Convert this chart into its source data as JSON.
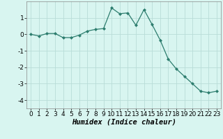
{
  "x": [
    0,
    1,
    2,
    3,
    4,
    5,
    6,
    7,
    8,
    9,
    10,
    11,
    12,
    13,
    14,
    15,
    16,
    17,
    18,
    19,
    20,
    21,
    22,
    23
  ],
  "y": [
    0.0,
    -0.1,
    0.05,
    0.05,
    -0.2,
    -0.2,
    -0.05,
    0.2,
    0.3,
    0.35,
    1.6,
    1.25,
    1.3,
    0.55,
    1.5,
    0.6,
    -0.35,
    -1.5,
    -2.1,
    -2.55,
    -3.0,
    -3.45,
    -3.55,
    -3.45
  ],
  "line_color": "#2d7d6e",
  "marker": "D",
  "marker_size": 2.0,
  "bg_color": "#d8f5f0",
  "grid_color": "#b8ddd8",
  "xlabel": "Humidex (Indice chaleur)",
  "xlim": [
    -0.5,
    23.5
  ],
  "ylim": [
    -4.5,
    2.0
  ],
  "yticks": [
    -4,
    -3,
    -2,
    -1,
    0,
    1
  ],
  "xticks": [
    0,
    1,
    2,
    3,
    4,
    5,
    6,
    7,
    8,
    9,
    10,
    11,
    12,
    13,
    14,
    15,
    16,
    17,
    18,
    19,
    20,
    21,
    22,
    23
  ],
  "tick_fontsize": 6.5,
  "xlabel_fontsize": 7.5
}
